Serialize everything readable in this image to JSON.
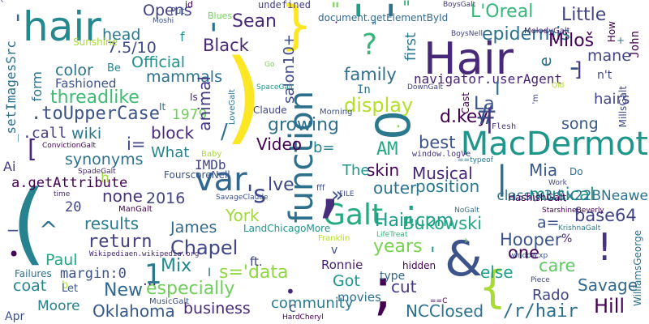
{
  "background": "#ffffff",
  "words": [
    {
      "text": "hair",
      "color": "#23898e"
    },
    {
      "text": "Hair",
      "color": "#482878"
    },
    {
      "text": "MacDermot",
      "color": "#1f968b"
    },
    {
      "text": "function",
      "color": "#2d708e"
    },
    {
      "text": "var",
      "color": "#31688e"
    },
    {
      "text": "Galt",
      "color": "#25ab82"
    },
    {
      "text": "(",
      "color": "#26828e"
    },
    {
      "text": "&",
      "color": "#3b528b"
    },
    {
      "text": "}",
      "color": "#fde725"
    },
    {
      "text": "{",
      "color": "#a8db34"
    },
    {
      "text": ")",
      "color": "#fde725"
    },
    {
      "text": ";",
      "color": "#440154"
    },
    {
      "text": "0",
      "color": "#2a788e"
    },
    {
      "text": "?",
      "color": "#35b779"
    },
    {
      "text": "!",
      "color": "#46327e"
    },
    {
      "text": "'",
      "color": "#1f9e89"
    },
    {
      "text": "'",
      "color": "#2c728e"
    },
    {
      "text": ":",
      "color": "#1f9e89"
    },
    {
      "text": ",",
      "color": "#472d7b"
    },
    {
      "text": "L'Oreal",
      "color": "#35b779"
    },
    {
      "text": "Little",
      "color": "#414487"
    },
    {
      "text": "epidermis",
      "color": "#2c728e"
    },
    {
      "text": "Miloš",
      "color": "#440154"
    },
    {
      "text": "Sean",
      "color": "#482878"
    },
    {
      "text": "Opens",
      "color": "#424086"
    },
    {
      "text": "head",
      "color": "#2a788e"
    },
    {
      "text": "7.5/10",
      "color": "#3e4989"
    },
    {
      "text": "Official",
      "color": "#20928c"
    },
    {
      "text": "mammals",
      "color": "#2d708e"
    },
    {
      "text": "color",
      "color": "#2c728e"
    },
    {
      "text": "threadlike",
      "color": "#3fbc73"
    },
    {
      "text": ".toUpperCase",
      "color": "#3b528b"
    },
    {
      "text": "Black",
      "color": "#482878"
    },
    {
      "text": "family",
      "color": "#2e6e8e"
    },
    {
      "text": "navigator.userAgent",
      "color": "#482475"
    },
    {
      "text": "display",
      "color": "#b5de2b"
    },
    {
      "text": "growing",
      "color": "#2d708e"
    },
    {
      "text": "Video",
      "color": "#440154"
    },
    {
      "text": "best",
      "color": "#3b528b"
    },
    {
      "text": "skin",
      "color": "#440154"
    },
    {
      "text": "Musical",
      "color": "#482878"
    },
    {
      "text": "Mia",
      "color": "#38588c"
    },
    {
      "text": "outer",
      "color": "#2c728e"
    },
    {
      "text": "position",
      "color": "#2a788e"
    },
    {
      "text": "Hair.com",
      "color": "#1e9c89"
    },
    {
      "text": "musical",
      "color": "#1f988b"
    },
    {
      "text": "Bukowski",
      "color": "#22a884"
    },
    {
      "text": "base64",
      "color": "#414487"
    },
    {
      "text": "years",
      "color": "#7ad151"
    },
    {
      "text": "Hooper",
      "color": "#3b528b"
    },
    {
      "text": "Chapel",
      "color": "#404688"
    },
    {
      "text": "return",
      "color": "#433e85"
    },
    {
      "text": "James",
      "color": "#31688e"
    },
    {
      "text": "Mix",
      "color": "#23898e"
    },
    {
      "text": "Paul",
      "color": "#22a884"
    },
    {
      "text": "margin:0",
      "color": "#3b528b"
    },
    {
      "text": "coat",
      "color": "#26828e"
    },
    {
      "text": "especially",
      "color": "#6ece58"
    },
    {
      "text": "business",
      "color": "#482878"
    },
    {
      "text": "Oklahoma",
      "color": "#38588c"
    },
    {
      "text": "community",
      "color": "#287c8e"
    },
    {
      "text": "NCClosed",
      "color": "#2c728e"
    },
    {
      "text": "/r/hair",
      "color": "#2d708e"
    },
    {
      "text": "Hill",
      "color": "#440154"
    },
    {
      "text": "Savage",
      "color": "#31688e"
    },
    {
      "text": "Rado",
      "color": "#414487"
    },
    {
      "text": "care",
      "color": "#5ec962"
    },
    {
      "text": "else",
      "color": "#1f9e89"
    },
    {
      "text": "one",
      "color": "#440154"
    },
    {
      "text": "cut",
      "color": "#443a83"
    },
    {
      "text": "Got",
      "color": "#1f968b"
    },
    {
      "text": "movies",
      "color": "#2d708e"
    },
    {
      "text": "Ronnie",
      "color": "#482071"
    },
    {
      "text": "type",
      "color": "#31688e"
    },
    {
      "text": "hidden",
      "color": "#440154"
    },
    {
      "text": "results",
      "color": "#297b8e"
    },
    {
      "text": "2016",
      "color": "#414487"
    },
    {
      "text": "none",
      "color": "#46337e"
    },
    {
      "text": "a.getAttribute",
      "color": "#440154"
    },
    {
      "text": "synonyms",
      "color": "#2d708e"
    },
    {
      "text": "What",
      "color": "#25858e"
    },
    {
      "text": "block",
      "color": "#482878"
    },
    {
      "text": "wiki",
      "color": "#2a788e"
    },
    {
      "text": ".call",
      "color": "#443a83"
    },
    {
      "text": "1979",
      "color": "#6ece58"
    },
    {
      "text": "York",
      "color": "#a0da39"
    },
    {
      "text": "Fashioned",
      "color": "#3b528b"
    },
    {
      "text": "form",
      "color": "#2c728e"
    },
    {
      "text": "_setImagesSrc",
      "color": "#2e6e8e"
    },
    {
      "text": "salon10+",
      "color": "#3e4989"
    },
    {
      "text": "animal",
      "color": "#443983"
    },
    {
      "text": "first",
      "color": "#2a788e"
    },
    {
      "text": "In",
      "color": "#2c728e"
    },
    {
      "text": "d.key",
      "color": "#440154"
    },
    {
      "text": "La",
      "color": "#3b528b"
    },
    {
      "text": "I",
      "color": "#2c728e"
    },
    {
      "text": "e",
      "color": "#2d708e"
    },
    {
      "text": "mane",
      "color": "#414487"
    },
    {
      "text": "n't",
      "color": "#3e4989"
    },
    {
      "text": "hairs",
      "color": "#414487"
    },
    {
      "text": "song",
      "color": "#38588c"
    },
    {
      "text": "John",
      "color": "#440154"
    },
    {
      "text": "class\\x3d\\x22BNeawe",
      "color": "#2c728e"
    },
    {
      "text": "a=",
      "color": "#3b528b"
    },
    {
      "text": "AM",
      "color": "#22a884"
    },
    {
      "text": "b=",
      "color": "#26828e"
    },
    {
      "text": "The",
      "color": "#1f968b"
    },
    {
      "text": "Do",
      "color": "#2d708e"
    },
    {
      "text": "IMDb",
      "color": "#414487"
    },
    {
      "text": "s='data",
      "color": "#8fd744"
    },
    {
      "text": "ft.",
      "color": "#414487"
    },
    {
      "text": "Moore",
      "color": "#26828e"
    },
    {
      "text": "New",
      "color": "#31688e"
    },
    {
      "text": "1",
      "color": "#2a788e"
    },
    {
      "text": "b",
      "color": "#b5de2b"
    },
    {
      "text": "Let",
      "color": "#38588c"
    },
    {
      "text": "Apr",
      "color": "#3b528b"
    },
    {
      "text": "Failures",
      "color": "#2c728e"
    },
    {
      "text": "Ai",
      "color": "#443983"
    },
    {
      "text": "20",
      "color": "#414487"
    },
    {
      "text": "i=",
      "color": "#414487"
    },
    {
      "text": "f",
      "color": "#1f988b"
    },
    {
      "text": "h",
      "color": "#9fda3a"
    },
    {
      "text": "c",
      "color": "#3b528b"
    },
    {
      "text": "I",
      "color": "#2d708e"
    },
    {
      "text": "v",
      "color": "#3b528b"
    },
    {
      "text": "Sunshine",
      "color": "#a8db34"
    },
    {
      "text": "Be",
      "color": "#26828e"
    },
    {
      "text": "Put",
      "color": "#3b528b"
    },
    {
      "text": "Blues",
      "color": "#73d056"
    },
    {
      "text": "id",
      "color": "#440154"
    },
    {
      "text": "undefined",
      "color": "#433e85"
    },
    {
      "text": "document.getElementById",
      "color": "#31688e"
    },
    {
      "text": "Moshi",
      "color": "#3b528b"
    },
    {
      "text": "BoysGalt",
      "color": "#443983"
    },
    {
      "text": "BoysNell",
      "color": "#414487"
    },
    {
      "text": "MelodyGalt",
      "color": "#482878"
    },
    {
      "text": "How",
      "color": "#440154"
    },
    {
      "text": "Old",
      "color": "#b5de2b"
    },
    {
      "text": "DownGalt",
      "color": "#414487"
    },
    {
      "text": "SpaceGalt",
      "color": "#1f968b"
    },
    {
      "text": "LoveGalt",
      "color": "#2a788e"
    },
    {
      "text": "Claude",
      "color": "#404688"
    },
    {
      "text": "Morning",
      "color": "#3b528b"
    },
    {
      "text": "Go",
      "color": "#7ad151"
    },
    {
      "text": "Cast",
      "color": "#440154"
    },
    {
      "text": "Flesh",
      "color": "#46337e"
    },
    {
      "text": "window.logVe",
      "color": "#46327e"
    },
    {
      "text": "==typeof",
      "color": "#2a788e"
    },
    {
      "text": "ConvictionGalt",
      "color": "#440154"
    },
    {
      "text": "SpadeGalt",
      "color": "#482878"
    },
    {
      "text": "FourscoreNell",
      "color": "#3b528b"
    },
    {
      "text": "Baby",
      "color": "#a8db34"
    },
    {
      "text": "time",
      "color": "#482878"
    },
    {
      "text": "SavageClaude",
      "color": "#3b528b"
    },
    {
      "text": "ManGalt",
      "color": "#440154"
    },
    {
      "text": "LandChicagoMore",
      "color": "#1f968b"
    },
    {
      "text": "fff",
      "color": "#3e4989"
    },
    {
      "text": "FILE",
      "color": "#3e4989"
    },
    {
      "text": "HashishGalt",
      "color": "#440154"
    },
    {
      "text": "Work",
      "color": "#404688"
    },
    {
      "text": "NoGalt",
      "color": "#2d708e"
    },
    {
      "text": "StarshineBeverly",
      "color": "#440154"
    },
    {
      "text": "KrishnaGalt",
      "color": "#287c8e"
    },
    {
      "text": "WilliamsGeorge",
      "color": "#2c728e"
    },
    {
      "text": "Franklin",
      "color": "#b5de2b"
    },
    {
      "text": "LifeTreat",
      "color": "#35b779"
    },
    {
      "text": "Wikipediaen.wikipedia.org",
      "color": "#482878"
    },
    {
      "text": "window.xp",
      "color": "#3b528b"
    },
    {
      "text": "Piece",
      "color": "#414487"
    },
    {
      "text": "MusicGalt",
      "color": "#3b528b"
    },
    {
      "text": "==C",
      "color": "#440154"
    },
    {
      "text": "HardCheryl",
      "color": "#440154"
    },
    {
      "text": "MillsGalt",
      "color": "#3e4989"
    },
    {
      "text": "It",
      "color": "#2d708e"
    },
    {
      "text": "Is",
      "color": "#482878"
    },
    {
      "text": "'m",
      "color": "#3e4989"
    },
    {
      "text": "lve",
      "color": "#3e4989"
    },
    {
      "text": "^",
      "color": "#2d708e"
    },
    {
      "text": "#",
      "color": "#3b528b"
    },
    {
      "text": "|",
      "color": "#46337e"
    },
    {
      "text": "|",
      "color": "#2d708e"
    },
    {
      "text": "-",
      "color": "#3b528b"
    },
    {
      "text": "[",
      "color": "#482878"
    },
    {
      "text": "]",
      "color": "#46327e"
    },
    {
      "text": "%",
      "color": "#482878"
    },
    {
      "text": "/",
      "color": "#2d708e"
    },
    {
      "text": "'s",
      "color": "#3e4989"
    },
    {
      "text": "...",
      "color": "#482878"
    },
    {
      "text": "'",
      "color": "#2c728e"
    },
    {
      "text": "'",
      "color": "#1f9e89"
    },
    {
      "text": "'",
      "color": "#2d708e"
    },
    {
      "text": "\"",
      "color": "#7ad151"
    },
    {
      "text": "\"",
      "color": "#35b779"
    },
    {
      "text": "\"",
      "color": "#2d708e"
    },
    {
      "text": "+",
      "color": "#2d708e"
    },
    {
      "text": "_",
      "color": "#3b528b"
    },
    {
      "text": "›",
      "color": "#7ad151"
    },
    {
      "text": "»",
      "color": "#3b528b"
    },
    {
      "text": "•",
      "color": "#482878"
    },
    {
      "text": "•",
      "color": "#440154"
    },
    {
      "text": ".",
      "color": "#7ad151"
    },
    {
      "text": "·",
      "color": "#440154"
    },
    {
      "text": "`",
      "color": "#482878"
    }
  ]
}
